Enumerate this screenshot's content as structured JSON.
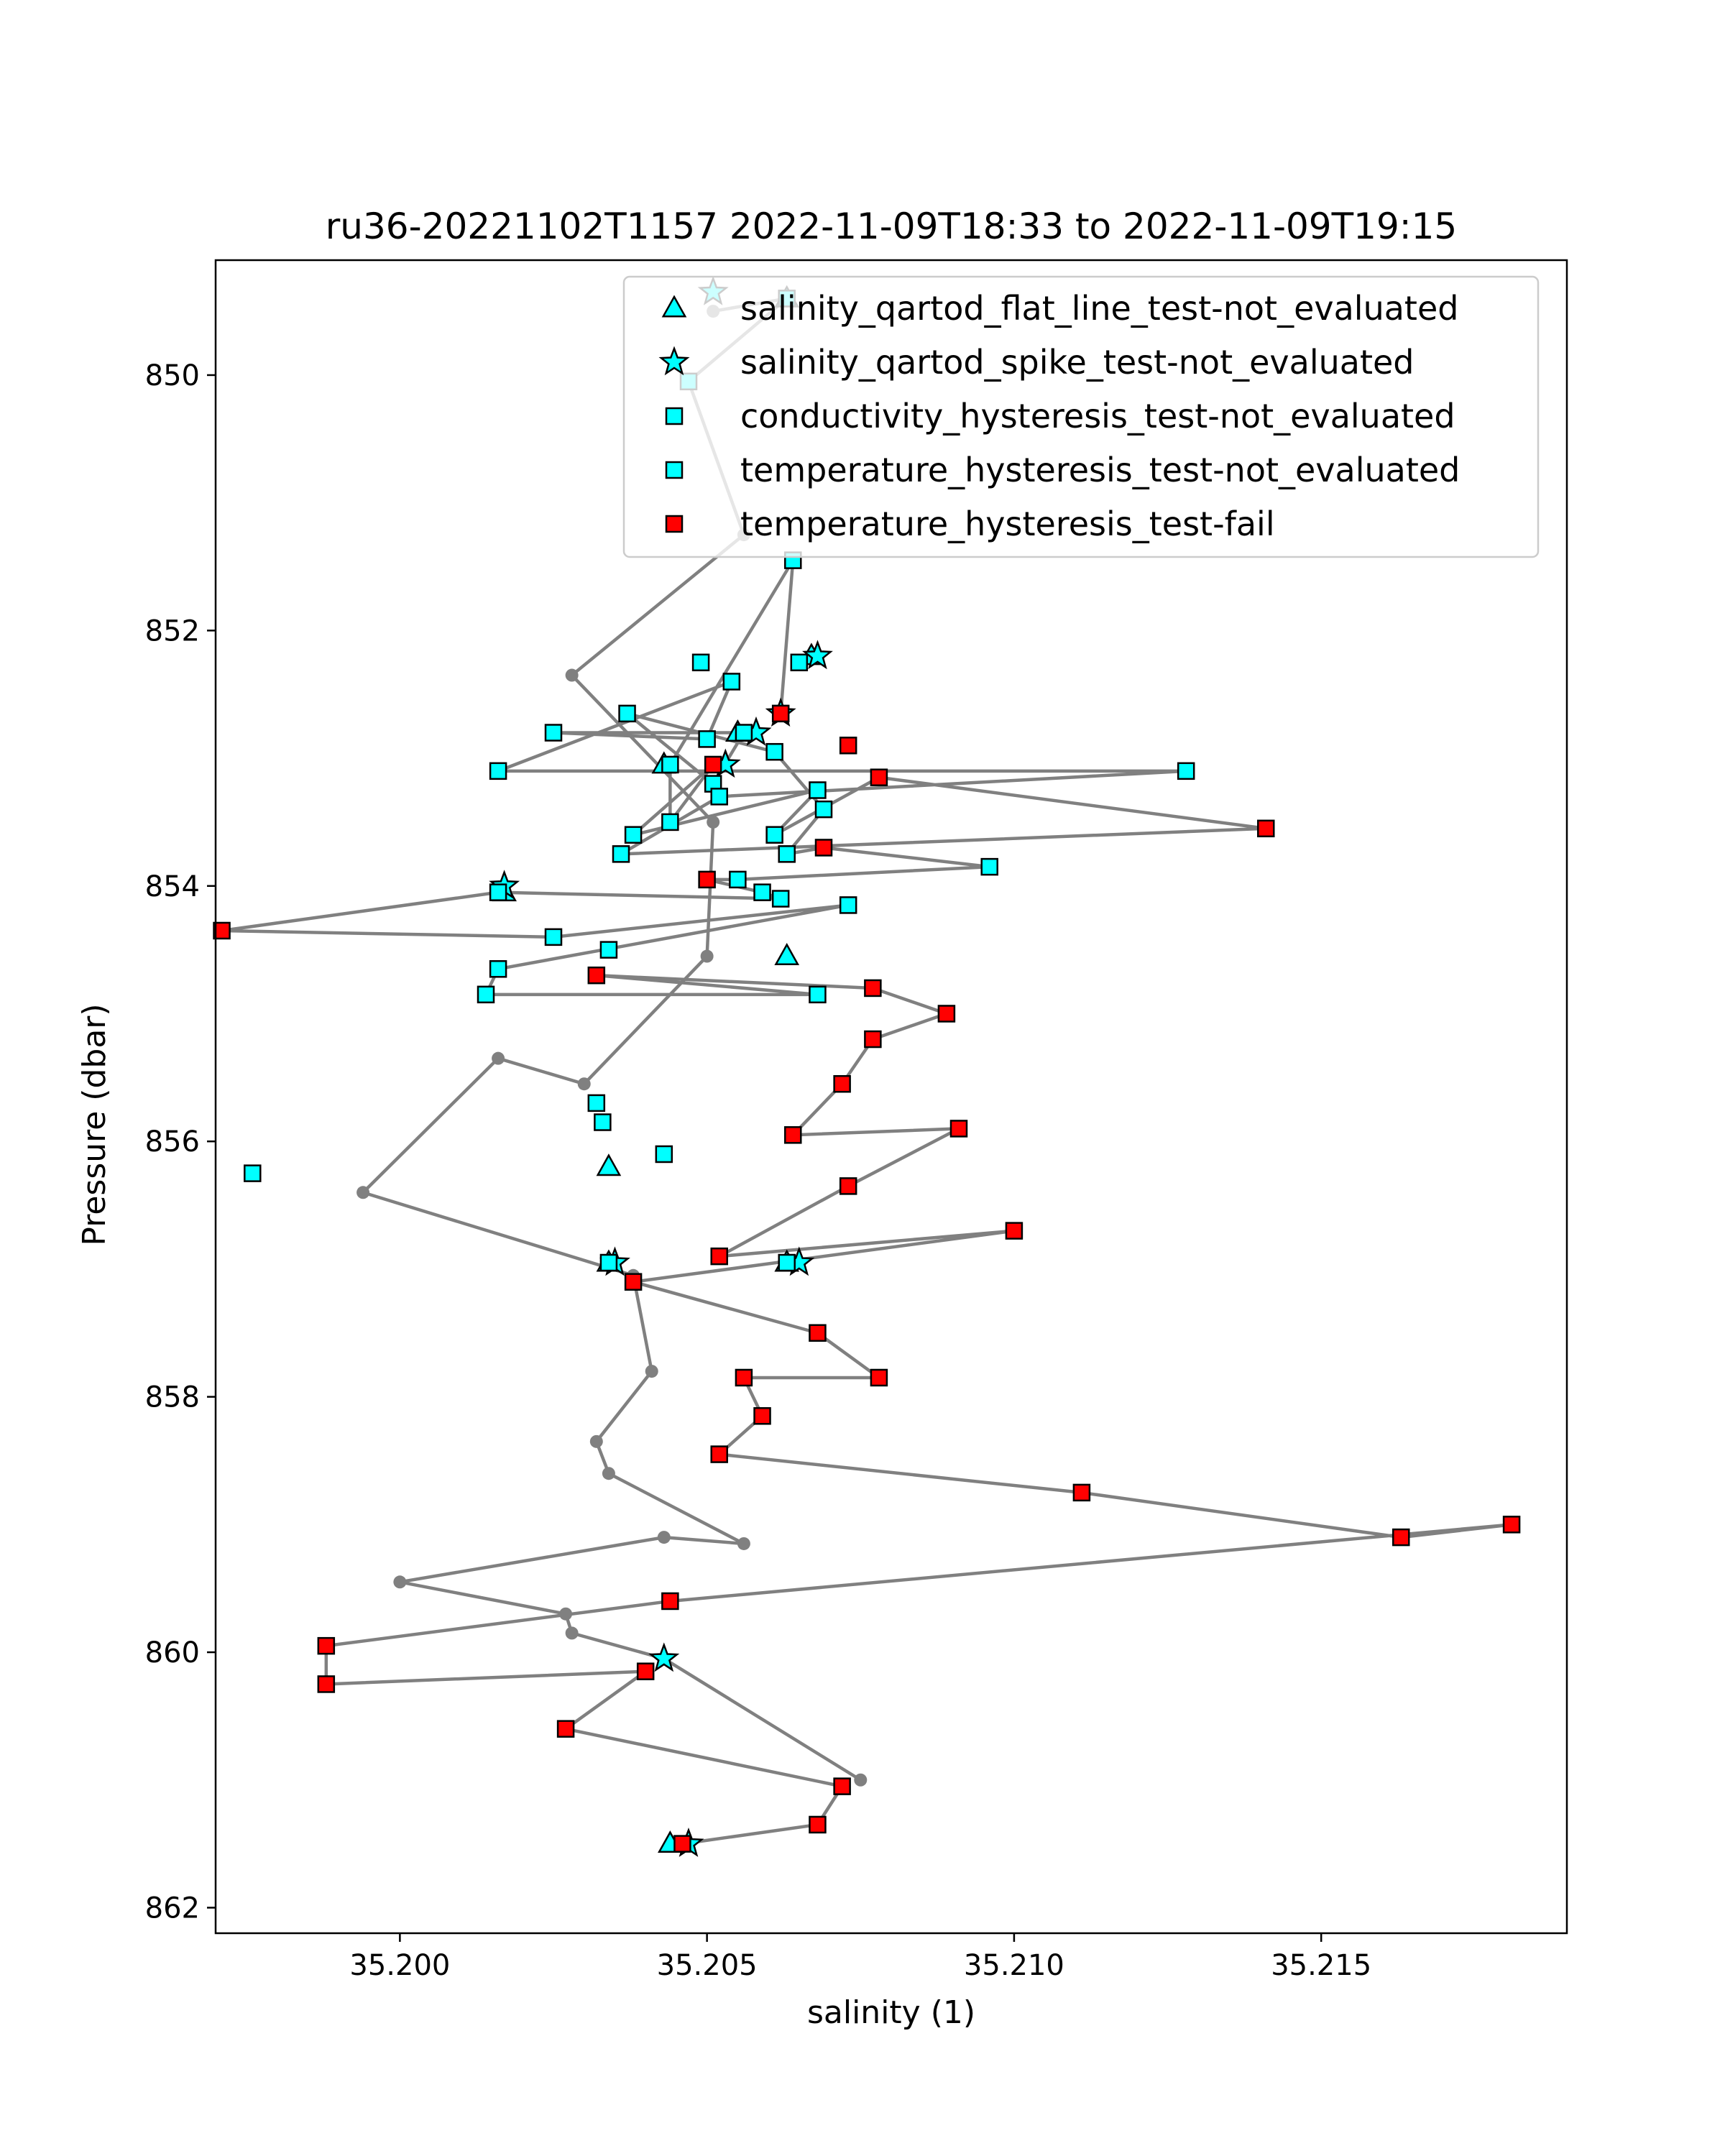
{
  "chart_data": {
    "type": "scatter",
    "title": "ru36-20221102T1157 2022-11-09T18:33 to 2022-11-09T19:15",
    "xlabel": "salinity (1)",
    "ylabel": "Pressure (dbar)",
    "xlim": [
      35.197,
      35.219
    ],
    "ylim": [
      862.2,
      849.1
    ],
    "y_inverted": true,
    "xticks": [
      35.2,
      35.205,
      35.21,
      35.215
    ],
    "xtick_labels": [
      "35.200",
      "35.205",
      "35.210",
      "35.215"
    ],
    "yticks": [
      850,
      852,
      854,
      856,
      858,
      860,
      862
    ],
    "ytick_labels": [
      "850",
      "852",
      "854",
      "856",
      "858",
      "860",
      "862"
    ],
    "grid": false,
    "legend_position": "top-right",
    "colors": {
      "line": "#808080",
      "not_evaluated": "#00ffff",
      "fail": "#ff0000",
      "edge": "#000000"
    },
    "profile": [
      [
        35.2051,
        849.5
      ],
      [
        35.2063,
        849.4
      ],
      [
        35.2047,
        850.05
      ],
      [
        35.2056,
        851.25
      ],
      [
        35.2028,
        852.35
      ],
      [
        35.2051,
        853.5
      ],
      [
        35.205,
        854.55
      ],
      [
        35.203,
        855.55
      ],
      [
        35.2016,
        855.35
      ],
      [
        35.1994,
        856.4
      ],
      [
        35.2038,
        857.05
      ],
      [
        35.2041,
        857.8
      ],
      [
        35.2032,
        858.35
      ],
      [
        35.2034,
        858.6
      ],
      [
        35.2056,
        859.15
      ],
      [
        35.2043,
        859.1
      ],
      [
        35.2,
        859.45
      ],
      [
        35.2027,
        859.7
      ],
      [
        35.2028,
        859.85
      ],
      [
        35.2043,
        860.05
      ],
      [
        35.2075,
        861.0
      ]
    ],
    "series": [
      {
        "name": "salinity_qartod_flat_line_test-not_evaluated",
        "marker": "triangle",
        "points": [
          [
            35.2063,
            849.4
          ],
          [
            35.2067,
            852.2
          ],
          [
            35.2055,
            852.8
          ],
          [
            35.2043,
            853.05
          ],
          [
            35.2063,
            854.55
          ],
          [
            35.2017,
            854.05
          ],
          [
            35.2034,
            856.2
          ],
          [
            35.2063,
            856.95
          ],
          [
            35.2034,
            856.95
          ],
          [
            35.2044,
            861.5
          ]
        ]
      },
      {
        "name": "salinity_qartod_spike_test-not_evaluated",
        "marker": "star",
        "points": [
          [
            35.2051,
            849.35
          ],
          [
            35.2068,
            852.2
          ],
          [
            35.2062,
            852.65
          ],
          [
            35.2058,
            852.8
          ],
          [
            35.2053,
            853.05
          ],
          [
            35.2017,
            854.0
          ],
          [
            35.2035,
            856.95
          ],
          [
            35.2065,
            856.95
          ],
          [
            35.2043,
            860.05
          ],
          [
            35.2047,
            861.5
          ]
        ]
      },
      {
        "name": "conductivity_hysteresis_test-not_evaluated",
        "marker": "square",
        "points": [
          [
            35.2063,
            849.4
          ],
          [
            35.2047,
            850.05
          ],
          [
            35.2064,
            851.45
          ],
          [
            35.2049,
            852.25
          ],
          [
            35.2065,
            852.25
          ],
          [
            35.2054,
            852.4
          ],
          [
            35.2037,
            852.65
          ],
          [
            35.2025,
            852.8
          ],
          [
            35.205,
            852.85
          ],
          [
            35.2056,
            852.8
          ],
          [
            35.2061,
            852.95
          ],
          [
            35.2044,
            853.05
          ],
          [
            35.2016,
            853.1
          ],
          [
            35.2051,
            853.2
          ],
          [
            35.2052,
            853.3
          ],
          [
            35.2068,
            853.25
          ],
          [
            35.2128,
            853.1
          ],
          [
            35.2069,
            853.4
          ],
          [
            35.2044,
            853.5
          ],
          [
            35.2038,
            853.6
          ],
          [
            35.2061,
            853.6
          ],
          [
            35.2063,
            853.75
          ],
          [
            35.2036,
            853.75
          ],
          [
            35.2096,
            853.85
          ],
          [
            35.2055,
            853.95
          ],
          [
            35.2059,
            854.05
          ],
          [
            35.2062,
            854.1
          ],
          [
            35.2016,
            854.05
          ],
          [
            35.2073,
            854.15
          ],
          [
            35.2025,
            854.4
          ],
          [
            35.2034,
            854.5
          ],
          [
            35.2016,
            854.65
          ],
          [
            35.2014,
            854.85
          ],
          [
            35.2068,
            854.85
          ],
          [
            35.2032,
            855.7
          ],
          [
            35.2033,
            855.85
          ],
          [
            35.2043,
            856.1
          ],
          [
            35.1976,
            856.25
          ],
          [
            35.2034,
            856.95
          ],
          [
            35.2063,
            856.95
          ]
        ]
      },
      {
        "name": "temperature_hysteresis_test-not_evaluated",
        "marker": "square",
        "points": []
      },
      {
        "name": "temperature_hysteresis_test-fail",
        "marker": "square",
        "points": [
          [
            35.2062,
            852.65
          ],
          [
            35.2073,
            852.9
          ],
          [
            35.2051,
            853.05
          ],
          [
            35.2078,
            853.15
          ],
          [
            35.2141,
            853.55
          ],
          [
            35.2069,
            853.7
          ],
          [
            35.205,
            853.95
          ],
          [
            35.1971,
            854.35
          ],
          [
            35.2032,
            854.7
          ],
          [
            35.2077,
            854.8
          ],
          [
            35.2089,
            855.0
          ],
          [
            35.2077,
            855.2
          ],
          [
            35.2072,
            855.55
          ],
          [
            35.2064,
            855.95
          ],
          [
            35.2091,
            855.9
          ],
          [
            35.2073,
            856.35
          ],
          [
            35.2052,
            856.9
          ],
          [
            35.21,
            856.7
          ],
          [
            35.2038,
            857.1
          ],
          [
            35.2068,
            857.5
          ],
          [
            35.2078,
            857.85
          ],
          [
            35.2056,
            857.85
          ],
          [
            35.2059,
            858.15
          ],
          [
            35.2052,
            858.45
          ],
          [
            35.2111,
            858.75
          ],
          [
            35.2163,
            859.1
          ],
          [
            35.2181,
            859.0
          ],
          [
            35.2044,
            859.6
          ],
          [
            35.1988,
            859.95
          ],
          [
            35.1988,
            860.25
          ],
          [
            35.204,
            860.15
          ],
          [
            35.2027,
            860.6
          ],
          [
            35.2072,
            861.05
          ],
          [
            35.2068,
            861.35
          ],
          [
            35.2046,
            861.5
          ]
        ]
      }
    ],
    "path_order": [
      [
        4,
        0
      ],
      [
        2,
        2
      ],
      [
        2,
        11
      ],
      [
        2,
        18
      ],
      [
        4,
        2
      ],
      [
        2,
        19
      ],
      [
        2,
        15
      ],
      [
        2,
        20
      ],
      [
        4,
        3
      ],
      [
        4,
        4
      ],
      [
        2,
        22
      ],
      [
        2,
        14
      ],
      [
        2,
        16
      ],
      [
        2,
        12
      ],
      [
        2,
        5
      ],
      [
        2,
        8
      ],
      [
        2,
        7
      ],
      [
        2,
        9
      ],
      [
        2,
        13
      ],
      [
        2,
        6
      ],
      [
        2,
        10
      ],
      [
        2,
        17
      ],
      [
        2,
        21
      ],
      [
        4,
        5
      ],
      [
        2,
        23
      ],
      [
        2,
        24
      ],
      [
        4,
        6
      ],
      [
        2,
        25
      ],
      [
        2,
        26
      ],
      [
        2,
        27
      ],
      [
        4,
        7
      ],
      [
        2,
        29
      ],
      [
        2,
        28
      ],
      [
        2,
        31
      ],
      [
        2,
        32
      ],
      [
        2,
        33
      ],
      [
        4,
        8
      ],
      [
        4,
        9
      ],
      [
        4,
        10
      ],
      [
        4,
        11
      ],
      [
        4,
        12
      ],
      [
        4,
        13
      ],
      [
        4,
        14
      ],
      [
        4,
        15
      ],
      [
        4,
        16
      ],
      [
        4,
        17
      ],
      [
        4,
        18
      ],
      [
        4,
        19
      ],
      [
        4,
        20
      ],
      [
        4,
        21
      ],
      [
        4,
        22
      ],
      [
        4,
        23
      ],
      [
        4,
        24
      ],
      [
        4,
        25
      ],
      [
        4,
        26
      ],
      [
        4,
        27
      ],
      [
        4,
        28
      ],
      [
        4,
        29
      ],
      [
        4,
        30
      ],
      [
        4,
        31
      ],
      [
        4,
        32
      ],
      [
        4,
        33
      ],
      [
        4,
        34
      ]
    ]
  }
}
